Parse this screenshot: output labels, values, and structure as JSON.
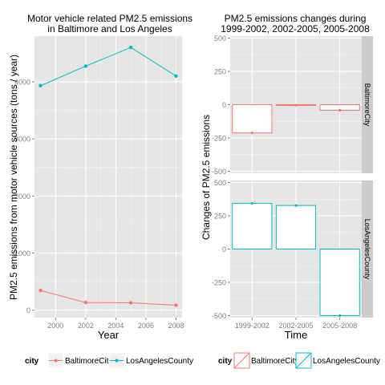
{
  "chart_data": [
    {
      "type": "line",
      "title_lines": [
        "Motor vehicle related PM2.5 emissions",
        "in Baltimore and Los Angeles"
      ],
      "xlabel": "Year",
      "ylabel": "PM2.5 emissions from motor vehicle sources (tons / year)",
      "x": [
        1999,
        2002,
        2005,
        2008
      ],
      "x_ticks": [
        2000,
        2002,
        2004,
        2006,
        2008
      ],
      "x_tick_labels": [
        "2000",
        "2002",
        "2004",
        "2006",
        "2008"
      ],
      "xlim": [
        1998.6,
        2008.4
      ],
      "y_ticks": [
        0,
        1000,
        2000,
        3000,
        4000
      ],
      "y_tick_labels": [
        "0",
        "1000",
        "2000",
        "3000",
        "4000"
      ],
      "ylim": [
        -130,
        4800
      ],
      "grid": true,
      "series": [
        {
          "name": "BaltimoreCity",
          "color": "#F8766D",
          "values": [
            346,
            134,
            130,
            88
          ]
        },
        {
          "name": "LosAngelesCounty",
          "color": "#00BFC4",
          "values": [
            3931,
            4274,
            4601,
            4101
          ]
        }
      ],
      "legend": {
        "title": "city",
        "position": "bottom"
      }
    },
    {
      "type": "bar",
      "title_lines": [
        "PM2.5 emissions changes during",
        "1999-2002, 2002-2005, 2005-2008"
      ],
      "xlabel": "Time",
      "ylabel": "Changes of PM2.5 emissions",
      "categories": [
        "1999-2002",
        "2002-2005",
        "2005-2008"
      ],
      "y_ticks": [
        -500,
        -250,
        0,
        250,
        500
      ],
      "y_tick_labels": [
        "-500",
        "-250",
        "0",
        "250",
        "500"
      ],
      "ylim": [
        -515,
        515
      ],
      "grid": true,
      "facets": [
        {
          "strip": "BaltimoreCity",
          "color": "#F8766D",
          "values": [
            -212,
            -4,
            -42
          ]
        },
        {
          "strip": "LosAngelesCounty",
          "color": "#00BFC4",
          "values": [
            343,
            327,
            -500
          ]
        }
      ],
      "legend": {
        "title": "city",
        "position": "bottom"
      }
    }
  ]
}
